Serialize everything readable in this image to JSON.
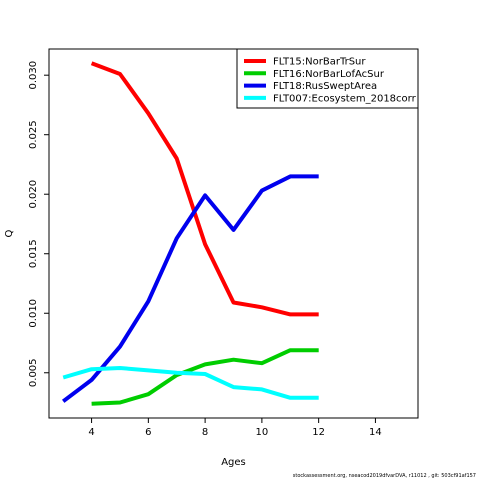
{
  "chart_data": {
    "type": "line",
    "xlabel": "Ages",
    "ylabel": "Q",
    "xlim": [
      2.5,
      15.5
    ],
    "ylim": [
      0.0012,
      0.0322
    ],
    "x_ticks": [
      4,
      6,
      8,
      10,
      12,
      14
    ],
    "y_ticks": [
      0.005,
      0.01,
      0.015,
      0.02,
      0.025,
      0.03
    ],
    "y_tick_labels": [
      "0.005",
      "0.010",
      "0.015",
      "0.020",
      "0.025",
      "0.030"
    ],
    "grid": false,
    "legend_position": "top-right",
    "series": [
      {
        "name": "FLT15:NorBarTrSur",
        "color": "#ff0000",
        "x": [
          4,
          5,
          6,
          7,
          8,
          9,
          10,
          11,
          12
        ],
        "values": [
          0.031,
          0.0301,
          0.0268,
          0.023,
          0.0158,
          0.0109,
          0.0105,
          0.0099,
          0.0099
        ]
      },
      {
        "name": "FLT16:NorBarLofAcSur",
        "color": "#00cd00",
        "x": [
          4,
          5,
          6,
          7,
          8,
          9,
          10,
          11,
          12
        ],
        "values": [
          0.0024,
          0.0025,
          0.0032,
          0.0048,
          0.0057,
          0.0061,
          0.0058,
          0.0069,
          0.0069
        ]
      },
      {
        "name": "FLT18:RusSweptArea",
        "color": "#0000ee",
        "x": [
          3,
          4,
          5,
          6,
          7,
          8,
          9,
          10,
          11,
          12
        ],
        "values": [
          0.0026,
          0.0044,
          0.0072,
          0.011,
          0.0163,
          0.0199,
          0.017,
          0.0203,
          0.0215,
          0.0215
        ]
      },
      {
        "name": "FLT007:Ecosystem_2018corr",
        "color": "#00ffff",
        "x": [
          3,
          4,
          5,
          6,
          7,
          8,
          9,
          10,
          11,
          12
        ],
        "values": [
          0.0046,
          0.0053,
          0.0054,
          0.0052,
          0.005,
          0.0049,
          0.0038,
          0.0036,
          0.0029,
          0.0029
        ]
      }
    ]
  },
  "footer": {
    "text": "stockassessment.org, nseacod2019dfvarDVA, r11012 , git: 503cf91af157"
  }
}
